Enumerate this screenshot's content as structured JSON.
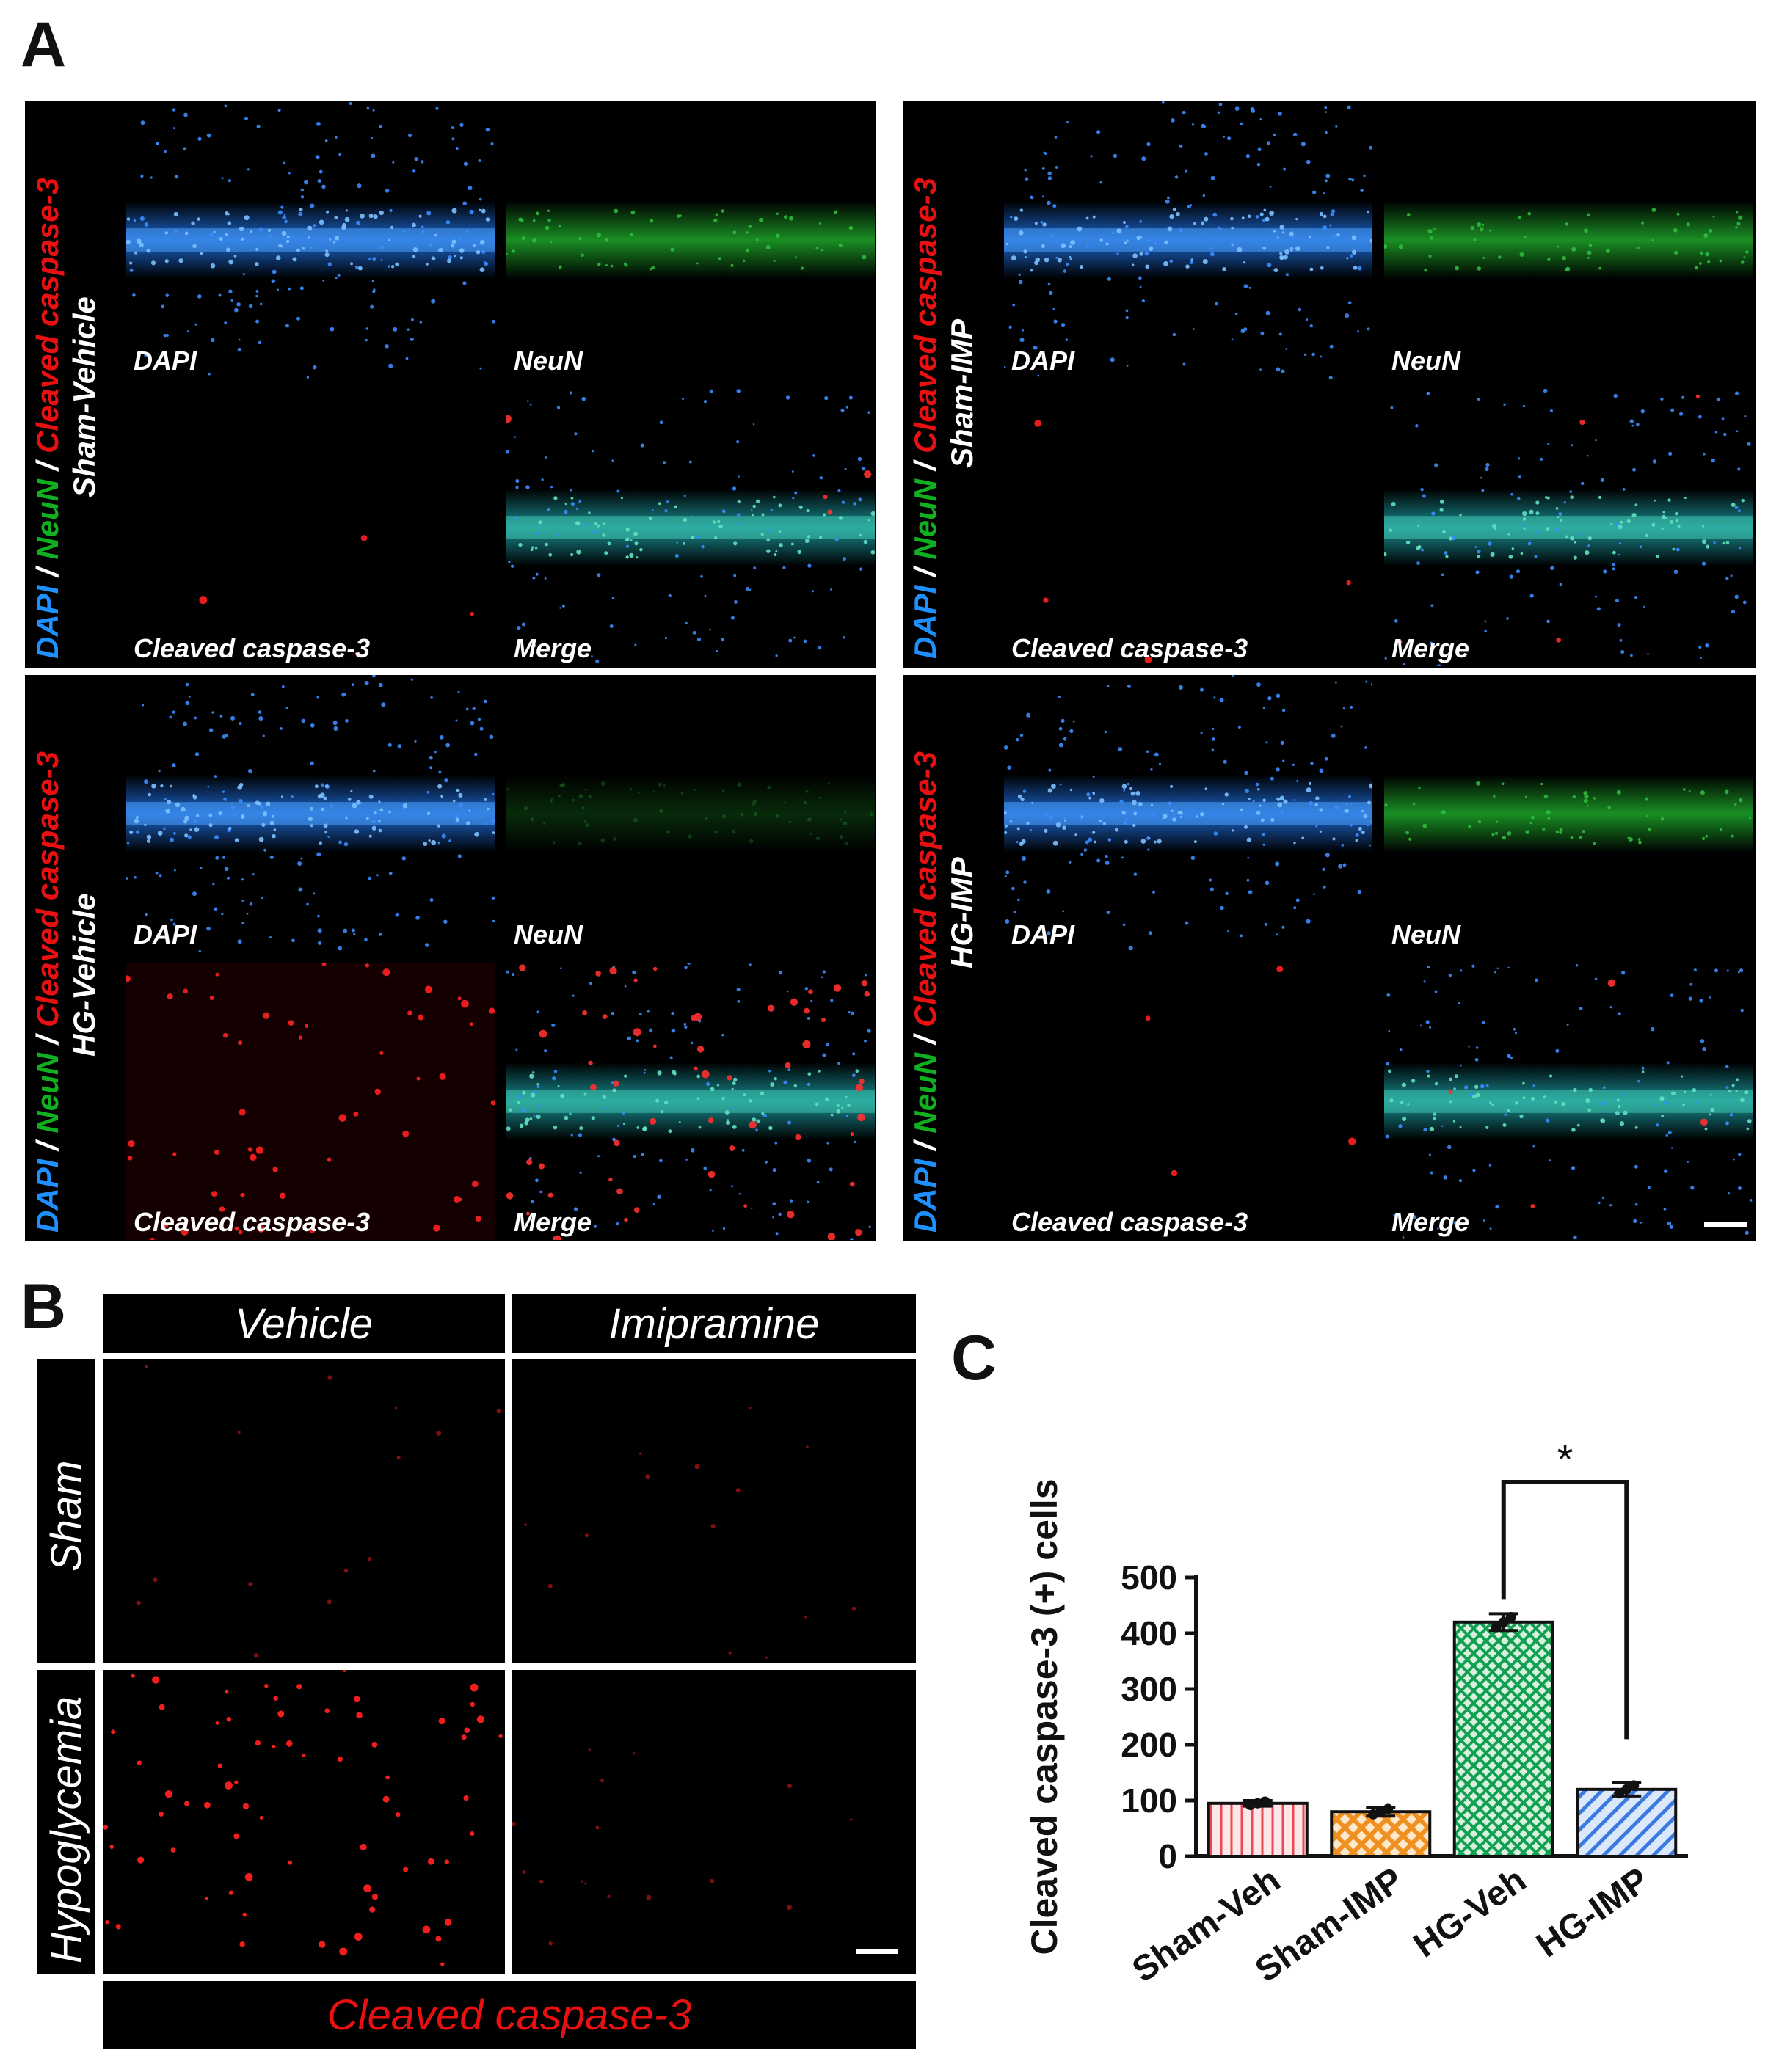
{
  "panel_a": {
    "letter": "A",
    "channel_labels": [
      "DAPI",
      "NeuN",
      "Cleaved caspase-3",
      "Merge"
    ],
    "stain_label": {
      "dapi": "DAPI",
      "slash": "/",
      "neun": "NeuN",
      "casp": "Cleaved caspase-3"
    },
    "groups": [
      {
        "name": "Sham-Vehicle"
      },
      {
        "name": "Sham-IMP"
      },
      {
        "name": "HG-Vehicle"
      },
      {
        "name": "HG-IMP"
      }
    ]
  },
  "panel_b": {
    "letter": "B",
    "col_headers": [
      "Vehicle",
      "Imipramine"
    ],
    "row_headers": [
      "Sham",
      "Hypoglycemia"
    ],
    "footer": "Cleaved caspase-3"
  },
  "panel_c": {
    "letter": "C"
  },
  "colors": {
    "dapi": "#1e90ff",
    "neun": "#10b020",
    "casp": "#e81010"
  },
  "chart_data": {
    "type": "bar",
    "title": "",
    "xlabel": "",
    "ylabel": "Cleaved caspase-3 (+) cells",
    "categories": [
      "Sham-Veh",
      "Sham-IMP",
      "HG-Veh",
      "HG-IMP"
    ],
    "values": [
      95,
      80,
      420,
      120
    ],
    "errors": [
      5,
      8,
      15,
      12
    ],
    "ylim": [
      0,
      500
    ],
    "yticks": [
      0,
      100,
      200,
      300,
      400,
      500
    ],
    "bar_colors": [
      "#e84a55",
      "#f09020",
      "#10a050",
      "#3a7ae0"
    ],
    "bar_fills": [
      "#fbe6e8",
      "#fde8cc",
      "#d8f0e0",
      "#dbe7fb"
    ],
    "significance": {
      "from": 2,
      "to": 3,
      "label": "*"
    }
  }
}
